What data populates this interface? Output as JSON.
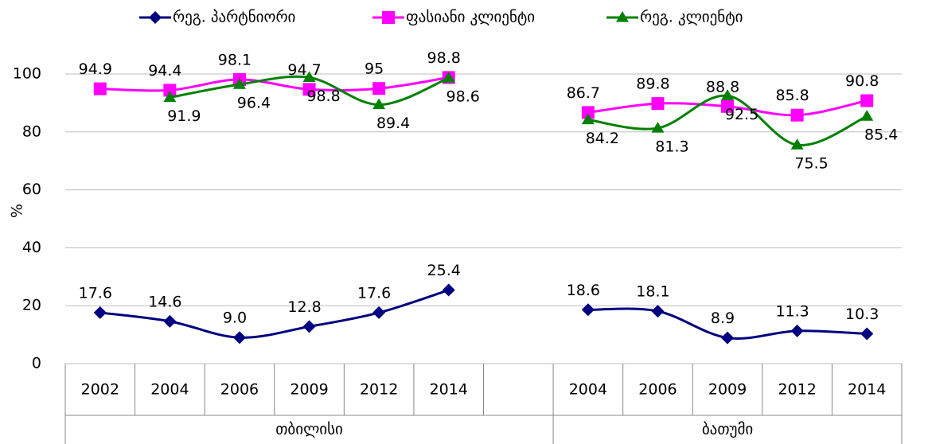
{
  "chart_data": {
    "type": "line",
    "y_label": "%",
    "groups": [
      {
        "name": "თბილისი",
        "categories": [
          "2002",
          "2004",
          "2006",
          "2009",
          "2012",
          "2014",
          null
        ]
      },
      {
        "name": "ბათუმი",
        "categories": [
          "2004",
          "2006",
          "2009",
          "2012",
          "2014"
        ]
      }
    ],
    "series": [
      {
        "name": "რეგ. პარტნიორი",
        "color": "#000080",
        "marker": "diamond",
        "values": [
          17.6,
          14.6,
          9.0,
          12.8,
          17.6,
          25.4,
          null,
          18.6,
          18.1,
          8.9,
          11.3,
          10.3
        ],
        "value_labels": [
          "17.6",
          "14.6",
          "9.0",
          "12.8",
          "17.6",
          "25.4",
          null,
          "18.6",
          "18.1",
          "8.9",
          "11.3",
          "10.3"
        ]
      },
      {
        "name": "ფასიანი კლიენტი",
        "color": "#ff00ff",
        "marker": "square",
        "values": [
          94.9,
          94.4,
          98.1,
          94.7,
          95,
          98.8,
          null,
          86.7,
          89.8,
          88.8,
          85.8,
          90.8
        ]
      },
      {
        "name": "რეგ. კლიენტი",
        "color": "#008000",
        "marker": "triangle",
        "values": [
          null,
          91.9,
          96.4,
          98.8,
          89.4,
          98.6,
          null,
          84.2,
          81.3,
          92.5,
          75.5,
          85.4
        ]
      }
    ],
    "ylim": [
      0,
      110
    ],
    "yticks": [
      0,
      20,
      40,
      60,
      80,
      100
    ],
    "grid": true,
    "legend": "top"
  }
}
